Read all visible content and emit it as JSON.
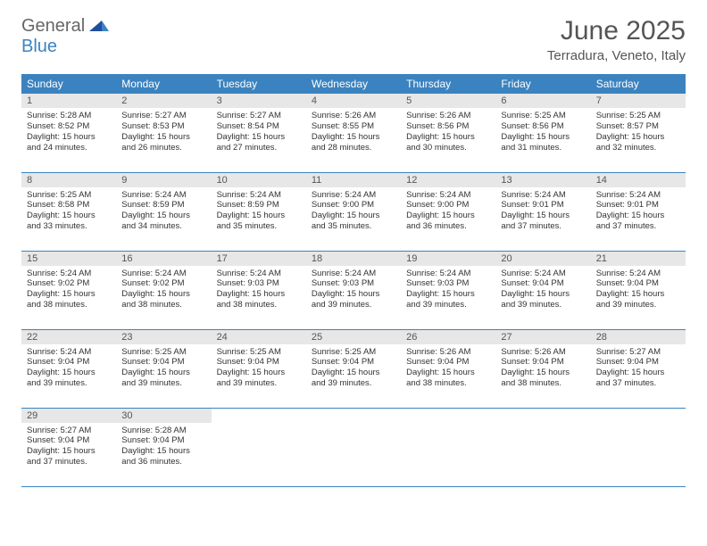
{
  "logo": {
    "top": "General",
    "bottom": "Blue"
  },
  "title": "June 2025",
  "location": "Terradura, Veneto, Italy",
  "colors": {
    "header_bg": "#3b83c0",
    "header_text": "#ffffff",
    "daynum_bg": "#e7e7e7",
    "row_border": "#3b83c0",
    "body_text": "#333333"
  },
  "weekdays": [
    "Sunday",
    "Monday",
    "Tuesday",
    "Wednesday",
    "Thursday",
    "Friday",
    "Saturday"
  ],
  "weeks": [
    [
      {
        "n": "1",
        "sr": "Sunrise: 5:28 AM",
        "ss": "Sunset: 8:52 PM",
        "d1": "Daylight: 15 hours",
        "d2": "and 24 minutes."
      },
      {
        "n": "2",
        "sr": "Sunrise: 5:27 AM",
        "ss": "Sunset: 8:53 PM",
        "d1": "Daylight: 15 hours",
        "d2": "and 26 minutes."
      },
      {
        "n": "3",
        "sr": "Sunrise: 5:27 AM",
        "ss": "Sunset: 8:54 PM",
        "d1": "Daylight: 15 hours",
        "d2": "and 27 minutes."
      },
      {
        "n": "4",
        "sr": "Sunrise: 5:26 AM",
        "ss": "Sunset: 8:55 PM",
        "d1": "Daylight: 15 hours",
        "d2": "and 28 minutes."
      },
      {
        "n": "5",
        "sr": "Sunrise: 5:26 AM",
        "ss": "Sunset: 8:56 PM",
        "d1": "Daylight: 15 hours",
        "d2": "and 30 minutes."
      },
      {
        "n": "6",
        "sr": "Sunrise: 5:25 AM",
        "ss": "Sunset: 8:56 PM",
        "d1": "Daylight: 15 hours",
        "d2": "and 31 minutes."
      },
      {
        "n": "7",
        "sr": "Sunrise: 5:25 AM",
        "ss": "Sunset: 8:57 PM",
        "d1": "Daylight: 15 hours",
        "d2": "and 32 minutes."
      }
    ],
    [
      {
        "n": "8",
        "sr": "Sunrise: 5:25 AM",
        "ss": "Sunset: 8:58 PM",
        "d1": "Daylight: 15 hours",
        "d2": "and 33 minutes."
      },
      {
        "n": "9",
        "sr": "Sunrise: 5:24 AM",
        "ss": "Sunset: 8:59 PM",
        "d1": "Daylight: 15 hours",
        "d2": "and 34 minutes."
      },
      {
        "n": "10",
        "sr": "Sunrise: 5:24 AM",
        "ss": "Sunset: 8:59 PM",
        "d1": "Daylight: 15 hours",
        "d2": "and 35 minutes."
      },
      {
        "n": "11",
        "sr": "Sunrise: 5:24 AM",
        "ss": "Sunset: 9:00 PM",
        "d1": "Daylight: 15 hours",
        "d2": "and 35 minutes."
      },
      {
        "n": "12",
        "sr": "Sunrise: 5:24 AM",
        "ss": "Sunset: 9:00 PM",
        "d1": "Daylight: 15 hours",
        "d2": "and 36 minutes."
      },
      {
        "n": "13",
        "sr": "Sunrise: 5:24 AM",
        "ss": "Sunset: 9:01 PM",
        "d1": "Daylight: 15 hours",
        "d2": "and 37 minutes."
      },
      {
        "n": "14",
        "sr": "Sunrise: 5:24 AM",
        "ss": "Sunset: 9:01 PM",
        "d1": "Daylight: 15 hours",
        "d2": "and 37 minutes."
      }
    ],
    [
      {
        "n": "15",
        "sr": "Sunrise: 5:24 AM",
        "ss": "Sunset: 9:02 PM",
        "d1": "Daylight: 15 hours",
        "d2": "and 38 minutes."
      },
      {
        "n": "16",
        "sr": "Sunrise: 5:24 AM",
        "ss": "Sunset: 9:02 PM",
        "d1": "Daylight: 15 hours",
        "d2": "and 38 minutes."
      },
      {
        "n": "17",
        "sr": "Sunrise: 5:24 AM",
        "ss": "Sunset: 9:03 PM",
        "d1": "Daylight: 15 hours",
        "d2": "and 38 minutes."
      },
      {
        "n": "18",
        "sr": "Sunrise: 5:24 AM",
        "ss": "Sunset: 9:03 PM",
        "d1": "Daylight: 15 hours",
        "d2": "and 39 minutes."
      },
      {
        "n": "19",
        "sr": "Sunrise: 5:24 AM",
        "ss": "Sunset: 9:03 PM",
        "d1": "Daylight: 15 hours",
        "d2": "and 39 minutes."
      },
      {
        "n": "20",
        "sr": "Sunrise: 5:24 AM",
        "ss": "Sunset: 9:04 PM",
        "d1": "Daylight: 15 hours",
        "d2": "and 39 minutes."
      },
      {
        "n": "21",
        "sr": "Sunrise: 5:24 AM",
        "ss": "Sunset: 9:04 PM",
        "d1": "Daylight: 15 hours",
        "d2": "and 39 minutes."
      }
    ],
    [
      {
        "n": "22",
        "sr": "Sunrise: 5:24 AM",
        "ss": "Sunset: 9:04 PM",
        "d1": "Daylight: 15 hours",
        "d2": "and 39 minutes."
      },
      {
        "n": "23",
        "sr": "Sunrise: 5:25 AM",
        "ss": "Sunset: 9:04 PM",
        "d1": "Daylight: 15 hours",
        "d2": "and 39 minutes."
      },
      {
        "n": "24",
        "sr": "Sunrise: 5:25 AM",
        "ss": "Sunset: 9:04 PM",
        "d1": "Daylight: 15 hours",
        "d2": "and 39 minutes."
      },
      {
        "n": "25",
        "sr": "Sunrise: 5:25 AM",
        "ss": "Sunset: 9:04 PM",
        "d1": "Daylight: 15 hours",
        "d2": "and 39 minutes."
      },
      {
        "n": "26",
        "sr": "Sunrise: 5:26 AM",
        "ss": "Sunset: 9:04 PM",
        "d1": "Daylight: 15 hours",
        "d2": "and 38 minutes."
      },
      {
        "n": "27",
        "sr": "Sunrise: 5:26 AM",
        "ss": "Sunset: 9:04 PM",
        "d1": "Daylight: 15 hours",
        "d2": "and 38 minutes."
      },
      {
        "n": "28",
        "sr": "Sunrise: 5:27 AM",
        "ss": "Sunset: 9:04 PM",
        "d1": "Daylight: 15 hours",
        "d2": "and 37 minutes."
      }
    ],
    [
      {
        "n": "29",
        "sr": "Sunrise: 5:27 AM",
        "ss": "Sunset: 9:04 PM",
        "d1": "Daylight: 15 hours",
        "d2": "and 37 minutes."
      },
      {
        "n": "30",
        "sr": "Sunrise: 5:28 AM",
        "ss": "Sunset: 9:04 PM",
        "d1": "Daylight: 15 hours",
        "d2": "and 36 minutes."
      },
      null,
      null,
      null,
      null,
      null
    ]
  ]
}
